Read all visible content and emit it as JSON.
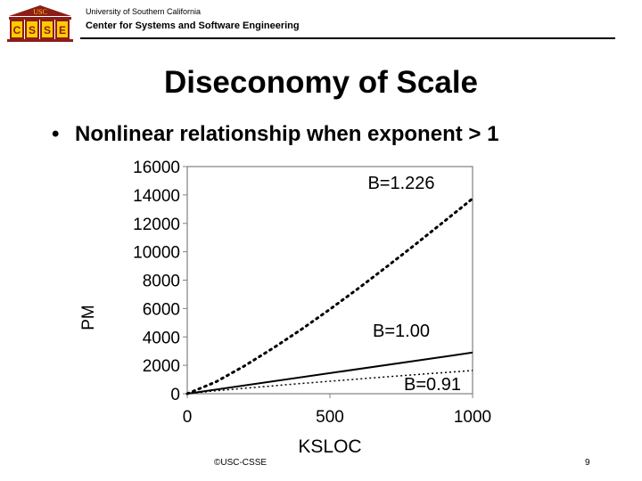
{
  "header": {
    "logo_text": "USC",
    "logo_letters": [
      "C",
      "S",
      "S",
      "E"
    ],
    "institution": "University of Southern California",
    "center": "Center for Systems and Software Engineering"
  },
  "slide": {
    "title": "Diseconomy of Scale",
    "bullet_mark": "•",
    "bullet": "Nonlinear relationship when exponent > 1"
  },
  "chart_data": {
    "type": "line",
    "xlabel": "KSLOC",
    "ylabel": "PM",
    "xlim": [
      0,
      1000
    ],
    "ylim": [
      0,
      16000
    ],
    "x_ticks": [
      0,
      500,
      1000
    ],
    "y_ticks": [
      0,
      2000,
      4000,
      6000,
      8000,
      10000,
      12000,
      14000,
      16000
    ],
    "grid": false,
    "series": [
      {
        "name": "B=1.226",
        "style": "dotted-heavy",
        "x": [
          0,
          100,
          200,
          300,
          400,
          500,
          600,
          700,
          800,
          900,
          1000
        ],
        "y": [
          0,
          830,
          1950,
          3200,
          4530,
          5950,
          7420,
          8960,
          10520,
          12130,
          13750
        ]
      },
      {
        "name": "B=1.00",
        "style": "solid",
        "x": [
          0,
          1000
        ],
        "y": [
          0,
          2900
        ]
      },
      {
        "name": "B=0.91",
        "style": "dotted-light",
        "x": [
          0,
          100,
          200,
          300,
          400,
          500,
          600,
          700,
          800,
          900,
          1000
        ],
        "y": [
          0,
          205,
          385,
          555,
          720,
          880,
          1035,
          1190,
          1340,
          1490,
          1640
        ]
      }
    ]
  },
  "footer": {
    "copyright": "©USC-CSSE",
    "page": "9"
  }
}
